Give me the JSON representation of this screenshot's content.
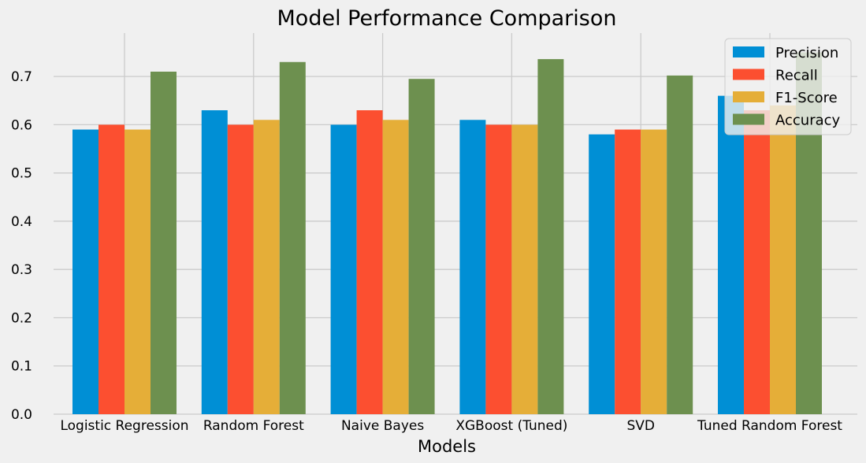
{
  "chart_data": {
    "type": "bar",
    "title": "Model Performance Comparison",
    "xlabel": "Models",
    "ylabel": "",
    "ylim": [
      0,
      0.79
    ],
    "yticks": [
      0.0,
      0.1,
      0.2,
      0.3,
      0.4,
      0.5,
      0.6,
      0.7
    ],
    "ytick_labels": [
      "0.0",
      "0.1",
      "0.2",
      "0.3",
      "0.4",
      "0.5",
      "0.6",
      "0.7"
    ],
    "grid": true,
    "legend_position": "top-right",
    "categories": [
      "Logistic Regression",
      "Random Forest",
      "Naive Bayes",
      "XGBoost (Tuned)",
      "SVD",
      "Tuned Random Forest"
    ],
    "series": [
      {
        "name": "Precision",
        "color": "#008fd5",
        "values": [
          0.59,
          0.63,
          0.6,
          0.61,
          0.58,
          0.66
        ]
      },
      {
        "name": "Recall",
        "color": "#fc4f30",
        "values": [
          0.6,
          0.6,
          0.63,
          0.6,
          0.59,
          0.63
        ]
      },
      {
        "name": "F1-Score",
        "color": "#e5ae38",
        "values": [
          0.59,
          0.61,
          0.61,
          0.6,
          0.59,
          0.64
        ]
      },
      {
        "name": "Accuracy",
        "color": "#6d904f",
        "values": [
          0.71,
          0.73,
          0.695,
          0.736,
          0.702,
          0.75
        ]
      }
    ]
  }
}
